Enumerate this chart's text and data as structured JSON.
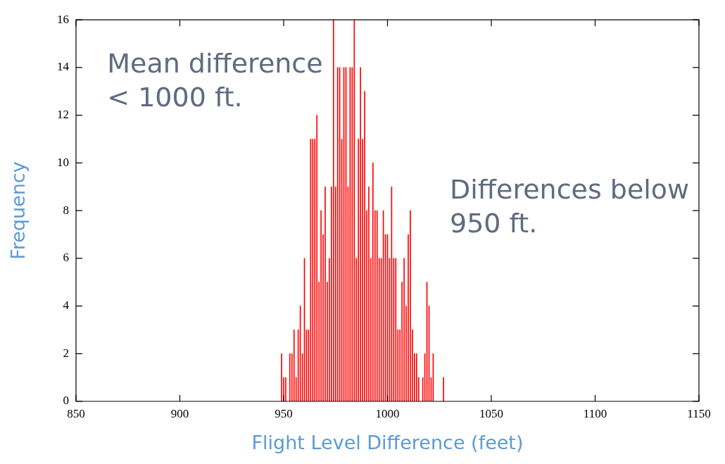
{
  "chart_data": {
    "type": "bar",
    "xlabel": "Flight Level Difference (feet)",
    "ylabel": "Frequency",
    "x": [
      949,
      950,
      951,
      953,
      954,
      955,
      956,
      957,
      958,
      959,
      960,
      961,
      962,
      963,
      964,
      965,
      966,
      967,
      968,
      969,
      970,
      971,
      972,
      973,
      974,
      975,
      976,
      977,
      978,
      979,
      980,
      981,
      982,
      983,
      984,
      985,
      986,
      987,
      988,
      989,
      990,
      991,
      992,
      993,
      994,
      995,
      996,
      997,
      998,
      999,
      1000,
      1001,
      1002,
      1003,
      1004,
      1005,
      1006,
      1007,
      1008,
      1009,
      1010,
      1011,
      1012,
      1013,
      1014,
      1015,
      1017,
      1018,
      1019,
      1020,
      1021,
      1022,
      1027
    ],
    "values": [
      2,
      1,
      1,
      2,
      2,
      3,
      1,
      3,
      4,
      2,
      6,
      3,
      3,
      11,
      11,
      11,
      12,
      5,
      8,
      7,
      9,
      5,
      6,
      9,
      16,
      9,
      14,
      14,
      11,
      14,
      14,
      9,
      14,
      14,
      16,
      6,
      11,
      14,
      11,
      13,
      8,
      9,
      6,
      10,
      8,
      8,
      6,
      6,
      8,
      7,
      7,
      6,
      9,
      6,
      6,
      3,
      3,
      5,
      6,
      4,
      7,
      8,
      3,
      2,
      2,
      1,
      1,
      2,
      5,
      4,
      1,
      2,
      1
    ],
    "color": "#ff0000",
    "xlim": [
      850,
      1150
    ],
    "xticks": [
      850,
      900,
      950,
      1000,
      1050,
      1100,
      1150
    ],
    "ylim": [
      0,
      16
    ],
    "yticks": [
      0,
      2,
      4,
      6,
      8,
      10,
      12,
      14,
      16
    ],
    "grid": false,
    "legend": false,
    "annotations": [
      "Mean difference\n< 1000 ft.",
      "Differences below\n950 ft."
    ]
  }
}
